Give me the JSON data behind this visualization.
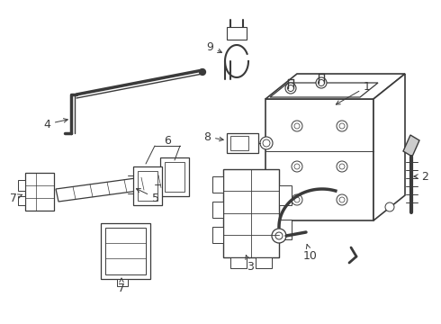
{
  "bg_color": "#ffffff",
  "line_color": "#3a3a3a",
  "lw": 0.9,
  "figsize": [
    4.9,
    3.6
  ],
  "dpi": 100,
  "xlim": [
    0,
    490
  ],
  "ylim": [
    0,
    360
  ]
}
